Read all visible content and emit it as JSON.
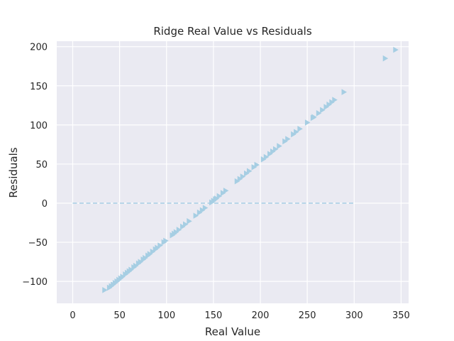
{
  "chart_data": {
    "type": "scatter",
    "title": "Ridge Real Value vs Residuals",
    "xlabel": "Real Value",
    "ylabel": "Residuals",
    "xlim": [
      -17,
      358
    ],
    "ylim": [
      -128,
      207
    ],
    "xticks": [
      0,
      50,
      100,
      150,
      200,
      250,
      300,
      350
    ],
    "yticks": [
      -100,
      -50,
      0,
      50,
      100,
      150,
      200
    ],
    "xtick_labels": [
      "0",
      "50",
      "100",
      "150",
      "200",
      "250",
      "300",
      "350"
    ],
    "ytick_labels": [
      "−100",
      "−50",
      "0",
      "50",
      "100",
      "150",
      "200"
    ],
    "grid": true,
    "background_color": "#eaeaf2",
    "marker_color": "#a6cee3",
    "marker": "triangle-right",
    "reference_line": {
      "y": 0,
      "x_range": [
        0,
        300
      ],
      "style": "dashed",
      "color": "#a6cee3"
    },
    "series": [
      {
        "name": "residuals",
        "x": [
          34,
          39,
          41,
          43,
          45,
          47,
          49,
          51,
          53,
          56,
          58,
          60,
          62,
          65,
          67,
          70,
          72,
          75,
          77,
          80,
          82,
          85,
          88,
          90,
          93,
          97,
          99,
          106,
          108,
          110,
          113,
          117,
          120,
          124,
          131,
          135,
          138,
          141,
          148,
          150,
          152,
          153,
          156,
          160,
          163,
          175,
          178,
          181,
          185,
          188,
          193,
          196,
          203,
          206,
          210,
          213,
          216,
          220,
          226,
          229,
          235,
          238,
          242,
          250,
          256,
          257,
          262,
          266,
          270,
          273,
          276,
          279,
          289,
          333,
          344
        ],
        "y": [
          -111,
          -108,
          -106,
          -104,
          -102,
          -100,
          -98,
          -96,
          -94,
          -91,
          -89,
          -87,
          -85,
          -82,
          -80,
          -77,
          -75,
          -72,
          -70,
          -67,
          -65,
          -62,
          -59,
          -57,
          -54,
          -50,
          -48,
          -41,
          -39,
          -37,
          -34,
          -30,
          -27,
          -23,
          -16,
          -12,
          -9,
          -6,
          1,
          3,
          5,
          6,
          9,
          13,
          16,
          28,
          31,
          34,
          38,
          41,
          46,
          49,
          56,
          59,
          63,
          66,
          69,
          73,
          79,
          82,
          88,
          91,
          95,
          103,
          109,
          110,
          115,
          119,
          123,
          126,
          129,
          132,
          142,
          185,
          196
        ]
      }
    ]
  }
}
